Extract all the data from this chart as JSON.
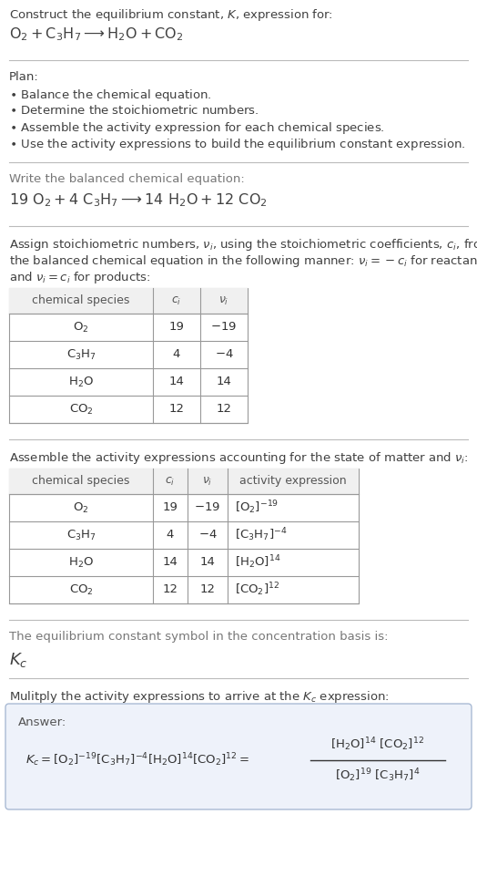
{
  "bg_color": "#ffffff",
  "answer_bg": "#eef2fa",
  "answer_border": "#aabbd4",
  "separator_color": "#bbbbbb",
  "text_color": "#404040",
  "table_header_bg": "#f0f0f0",
  "table_border": "#999999",
  "table1_rows": [
    [
      "$\\mathrm{O_2}$",
      "19",
      "$-19$"
    ],
    [
      "$\\mathrm{C_3H_7}$",
      "4",
      "$-4$"
    ],
    [
      "$\\mathrm{H_2O}$",
      "14",
      "14"
    ],
    [
      "$\\mathrm{CO_2}$",
      "12",
      "12"
    ]
  ],
  "table2_rows": [
    [
      "$\\mathrm{O_2}$",
      "19",
      "$-19$",
      "$[\\mathrm{O_2}]^{-19}$"
    ],
    [
      "$\\mathrm{C_3H_7}$",
      "4",
      "$-4$",
      "$[\\mathrm{C_3H_7}]^{-4}$"
    ],
    [
      "$\\mathrm{H_2O}$",
      "14",
      "14",
      "$[\\mathrm{H_2O}]^{14}$"
    ],
    [
      "$\\mathrm{CO_2}$",
      "12",
      "12",
      "$[\\mathrm{CO_2}]^{12}$"
    ]
  ]
}
